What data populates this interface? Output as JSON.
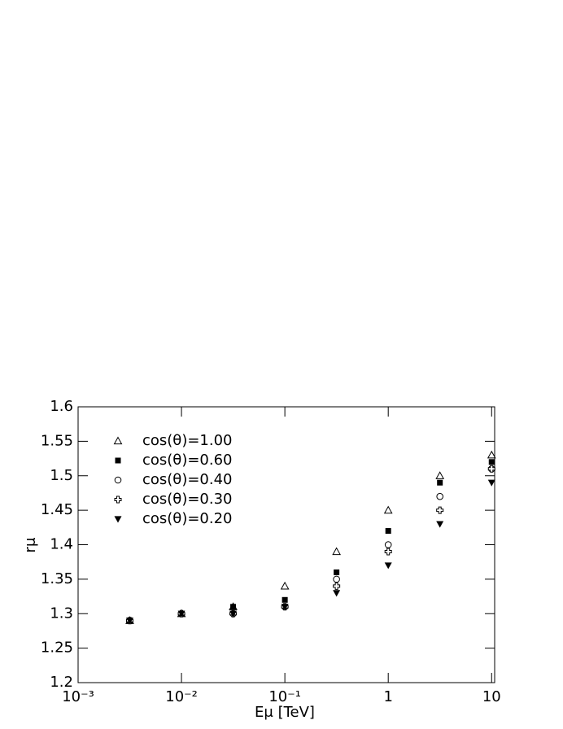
{
  "chart_data": {
    "type": "scatter",
    "xlabel": "Eμ [TeV]",
    "ylabel": "rμ",
    "log_x": true,
    "xlim": [
      0.001,
      10.7
    ],
    "xticks": [
      {
        "value": 0.001,
        "label": "10⁻³"
      },
      {
        "value": 0.01,
        "label": "10⁻²"
      },
      {
        "value": 0.1,
        "label": "10⁻¹"
      },
      1,
      10
    ],
    "ylim": [
      1.2,
      1.6
    ],
    "yticks": [
      1.2,
      1.25,
      1.3,
      1.35,
      1.4,
      1.45,
      1.5,
      1.55,
      1.6
    ],
    "legend": "upper left",
    "x": [
      0.00316,
      0.01,
      0.0316,
      0.1,
      0.316,
      1,
      3.16,
      10
    ],
    "series": [
      {
        "name": "cos(θ)=1.00",
        "color": "#000000",
        "marker": "triangle-open",
        "values": [
          1.29,
          1.3,
          1.31,
          1.34,
          1.39,
          1.45,
          1.5,
          1.53
        ]
      },
      {
        "name": "cos(θ)=0.60",
        "color": "#000000",
        "marker": "square-filled",
        "values": [
          1.29,
          1.3,
          1.31,
          1.32,
          1.36,
          1.42,
          1.49,
          1.52
        ]
      },
      {
        "name": "cos(θ)=0.40",
        "color": "#000000",
        "marker": "circle-open",
        "values": [
          1.29,
          1.3,
          1.3,
          1.31,
          1.35,
          1.4,
          1.47,
          1.51
        ]
      },
      {
        "name": "cos(θ)=0.30",
        "color": "#000000",
        "marker": "cross-open",
        "values": [
          1.29,
          1.3,
          1.3,
          1.31,
          1.34,
          1.39,
          1.45,
          1.51
        ]
      },
      {
        "name": "cos(θ)=0.20",
        "color": "#000000",
        "marker": "triangle-down-filled",
        "values": [
          1.29,
          1.3,
          1.3,
          1.31,
          1.33,
          1.37,
          1.43,
          1.49
        ]
      }
    ]
  }
}
